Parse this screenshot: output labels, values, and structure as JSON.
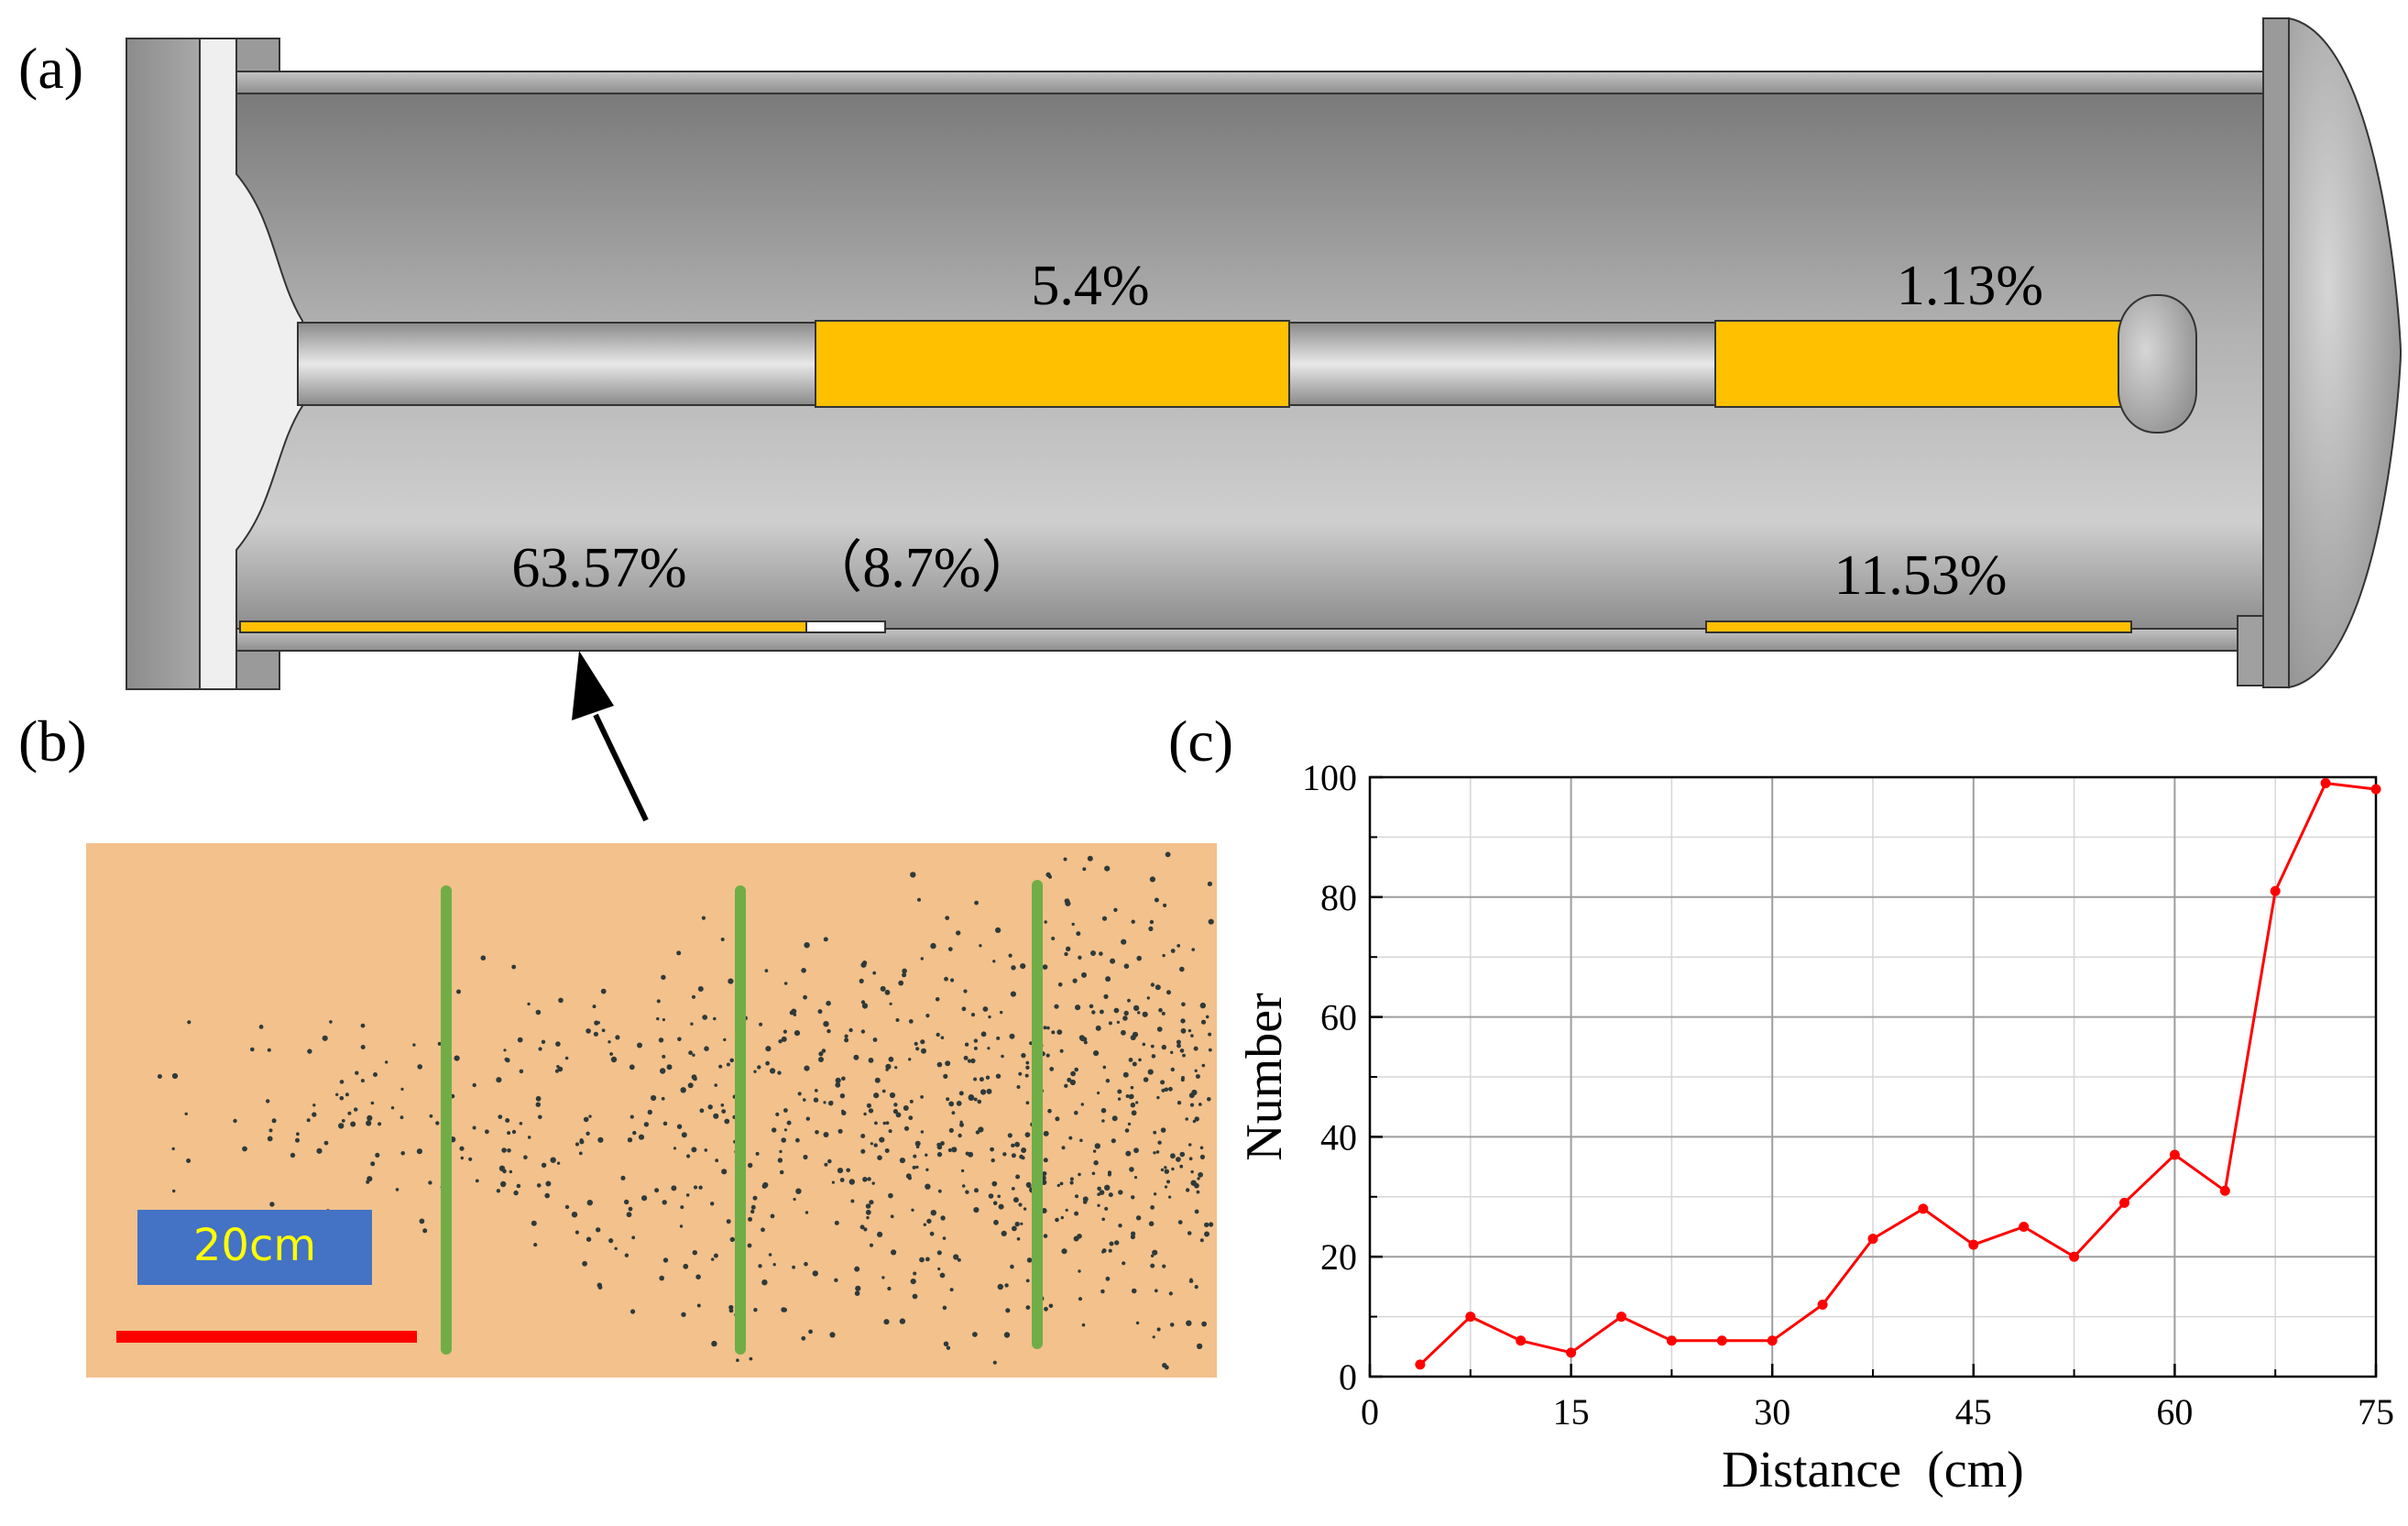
{
  "panels": {
    "a": {
      "label": "(a)"
    },
    "b": {
      "label": "(b)"
    },
    "c": {
      "label": "(c)"
    }
  },
  "vessel": {
    "rod_labels": [
      "5.4%",
      "1.13%"
    ],
    "wall_labels": [
      "63.57%",
      "（8.7%）",
      "11.53%"
    ]
  },
  "photo": {
    "scale_label": "20cm"
  },
  "colors": {
    "deposit": "#FFC000",
    "plot_line": "#FF0000",
    "photo_bg": "#F2C18C",
    "photo_divider": "#70AD47",
    "scale_box": "#4472C4",
    "scale_text": "#FFFF00",
    "scale_bar": "#FF0000"
  },
  "chart_data": {
    "type": "line",
    "xlabel": "Distance  (cm)",
    "ylabel": "Number",
    "xlim": [
      0,
      75
    ],
    "ylim": [
      0,
      100
    ],
    "xticks": [
      0,
      15,
      30,
      45,
      60,
      75
    ],
    "yticks": [
      0,
      20,
      40,
      60,
      80,
      100
    ],
    "grid": true,
    "x": [
      3.75,
      7.5,
      11.25,
      15,
      18.75,
      22.5,
      26.25,
      30,
      33.75,
      37.5,
      41.25,
      45,
      48.75,
      52.5,
      56.25,
      60,
      63.75,
      67.5,
      71.25,
      75
    ],
    "y": [
      2,
      10,
      6,
      4,
      10,
      6,
      6,
      6,
      12,
      23,
      28,
      22,
      25,
      20,
      29,
      37,
      31,
      81,
      99,
      98
    ]
  }
}
